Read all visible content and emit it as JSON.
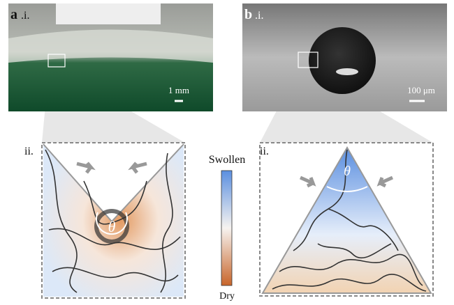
{
  "panel_a": {
    "letter": "a",
    "sub": ".i.",
    "scale_bar": "1 mm",
    "zoom_label": "ii.",
    "angle": "θ"
  },
  "panel_b": {
    "letter": "b",
    "sub": ".i.",
    "scale_bar": "100 μm",
    "zoom_label": "ii.",
    "angle": "θ"
  },
  "colorbar": {
    "top_label": "Swollen",
    "bottom_label": "Dry"
  }
}
